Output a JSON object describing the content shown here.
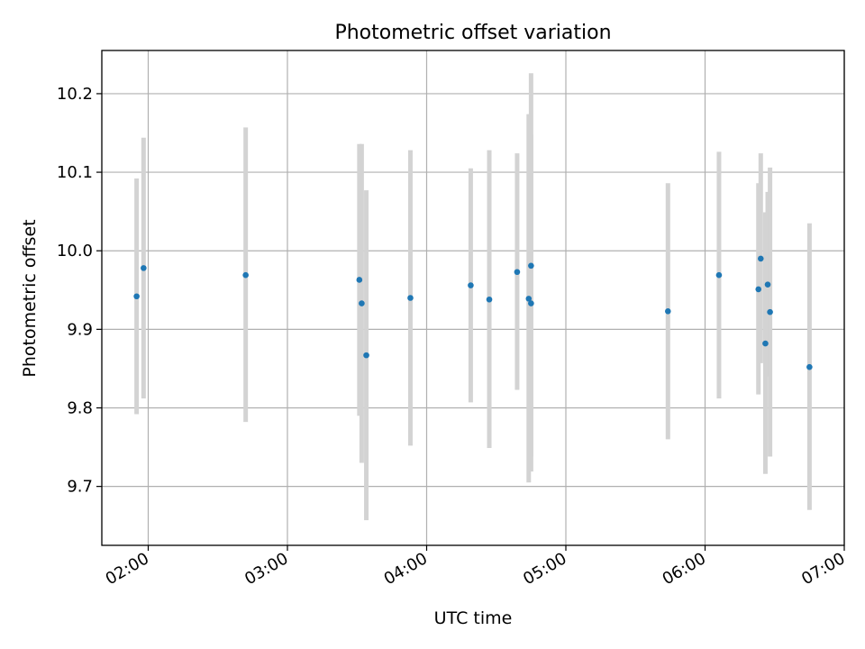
{
  "chart_data": {
    "type": "scatter",
    "title": "Photometric offset variation",
    "xlabel": "UTC time",
    "ylabel": "Photometric offset",
    "xlim": [
      "01:40",
      "07:00"
    ],
    "ylim": [
      9.625,
      10.255
    ],
    "x_ticks": [
      "02:00",
      "03:00",
      "04:00",
      "05:00",
      "06:00",
      "07:00"
    ],
    "y_ticks": [
      9.7,
      9.8,
      9.9,
      10.0,
      10.1,
      10.2
    ],
    "y_tick_labels": [
      "9.7",
      "9.8",
      "9.9",
      "10.0",
      "10.1",
      "10.2"
    ],
    "grid": true,
    "colors": {
      "points": "#1f77b4",
      "error_bars": "#d3d3d3",
      "grid": "#b0b0b0"
    },
    "series": [
      {
        "points": [
          {
            "x": "01:55",
            "y": 9.942,
            "y_low": 9.792,
            "y_high": 10.092
          },
          {
            "x": "01:58",
            "y": 9.978,
            "y_low": 9.812,
            "y_high": 10.144
          },
          {
            "x": "02:42",
            "y": 9.969,
            "y_low": 9.782,
            "y_high": 10.157
          },
          {
            "x": "03:31",
            "y": 9.963,
            "y_low": 9.79,
            "y_high": 10.136
          },
          {
            "x": "03:32",
            "y": 9.933,
            "y_low": 9.73,
            "y_high": 10.136
          },
          {
            "x": "03:34",
            "y": 9.867,
            "y_low": 9.657,
            "y_high": 10.077
          },
          {
            "x": "03:53",
            "y": 9.94,
            "y_low": 9.752,
            "y_high": 10.128
          },
          {
            "x": "04:19",
            "y": 9.956,
            "y_low": 9.807,
            "y_high": 10.105
          },
          {
            "x": "04:27",
            "y": 9.938,
            "y_low": 9.749,
            "y_high": 10.128
          },
          {
            "x": "04:39",
            "y": 9.973,
            "y_low": 9.823,
            "y_high": 10.124
          },
          {
            "x": "04:44",
            "y": 9.939,
            "y_low": 9.705,
            "y_high": 10.174
          },
          {
            "x": "04:45",
            "y": 9.981,
            "y_low": 9.738,
            "y_high": 10.226
          },
          {
            "x": "04:45",
            "y": 9.933,
            "y_low": 9.719,
            "y_high": 10.148
          },
          {
            "x": "05:44",
            "y": 9.923,
            "y_low": 9.76,
            "y_high": 10.086
          },
          {
            "x": "06:06",
            "y": 9.969,
            "y_low": 9.812,
            "y_high": 10.126
          },
          {
            "x": "06:23",
            "y": 9.951,
            "y_low": 9.817,
            "y_high": 10.086
          },
          {
            "x": "06:24",
            "y": 9.99,
            "y_low": 9.857,
            "y_high": 10.124
          },
          {
            "x": "06:26",
            "y": 9.882,
            "y_low": 9.716,
            "y_high": 10.049
          },
          {
            "x": "06:27",
            "y": 9.957,
            "y_low": 9.84,
            "y_high": 10.075
          },
          {
            "x": "06:28",
            "y": 9.922,
            "y_low": 9.738,
            "y_high": 10.106
          },
          {
            "x": "06:45",
            "y": 9.852,
            "y_low": 9.67,
            "y_high": 10.035
          }
        ]
      }
    ]
  }
}
